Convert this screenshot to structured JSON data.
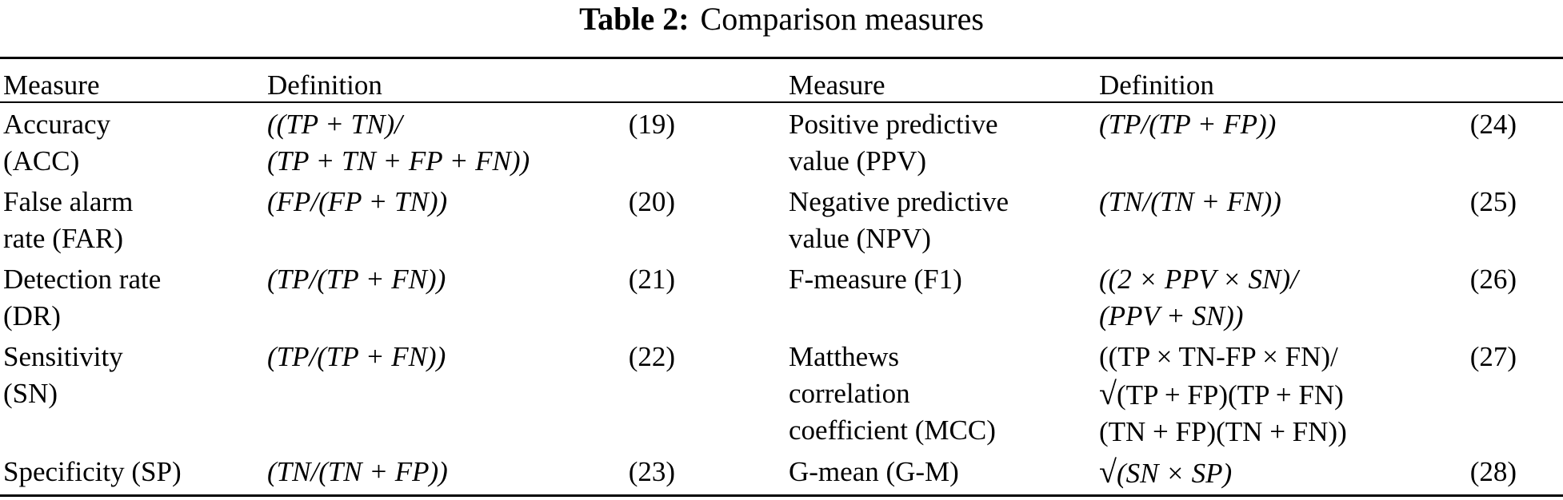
{
  "table": {
    "label": "Table 2:",
    "caption": "Comparison measures",
    "headers": {
      "left_measure": "Measure",
      "left_definition": "Definition",
      "right_measure": "Measure",
      "right_definition": "Definition"
    },
    "left_rows": [
      {
        "measure": [
          "Accuracy",
          "(ACC)"
        ],
        "definition": [
          "((TP + TN)/",
          "(TP + TN + FP + FN))"
        ],
        "eq": "(19)"
      },
      {
        "measure": [
          "False alarm",
          "rate (FAR)"
        ],
        "definition": [
          "(FP/(FP + TN))"
        ],
        "eq": "(20)"
      },
      {
        "measure": [
          "Detection rate",
          "(DR)"
        ],
        "definition": [
          "(TP/(TP + FN))"
        ],
        "eq": "(21)"
      },
      {
        "measure": [
          "Sensitivity",
          "(SN)"
        ],
        "definition": [
          "(TP/(TP + FN))"
        ],
        "eq": "(22)"
      },
      {
        "measure": [
          "Specificity (SP)"
        ],
        "definition": [
          "(TN/(TN + FP))"
        ],
        "eq": "(23)"
      }
    ],
    "right_rows": [
      {
        "measure": [
          "Positive predictive",
          "value (PPV)"
        ],
        "definition": [
          "(TP/(TP + FP))"
        ],
        "eq": "(24)"
      },
      {
        "measure": [
          "Negative predictive",
          "value (NPV)"
        ],
        "definition": [
          "(TN/(TN + FN))"
        ],
        "eq": "(25)"
      },
      {
        "measure": [
          "F-measure (F1)"
        ],
        "definition": [
          "((2 × PPV × SN)/",
          "(PPV + SN))"
        ],
        "eq": "(26)"
      },
      {
        "measure": [
          "Matthews",
          "correlation",
          "coefficient (MCC)"
        ],
        "definition": [
          "((TP × TN-FP × FN)/",
          "√",
          "(TP + FP)(TP + FN)",
          "(TN + FP)(TN + FN))"
        ],
        "eq": "(27)"
      },
      {
        "measure": [
          "G-mean (G-M)"
        ],
        "definition": [
          "√",
          "(SN × SP)"
        ],
        "eq": "(28)"
      }
    ]
  }
}
